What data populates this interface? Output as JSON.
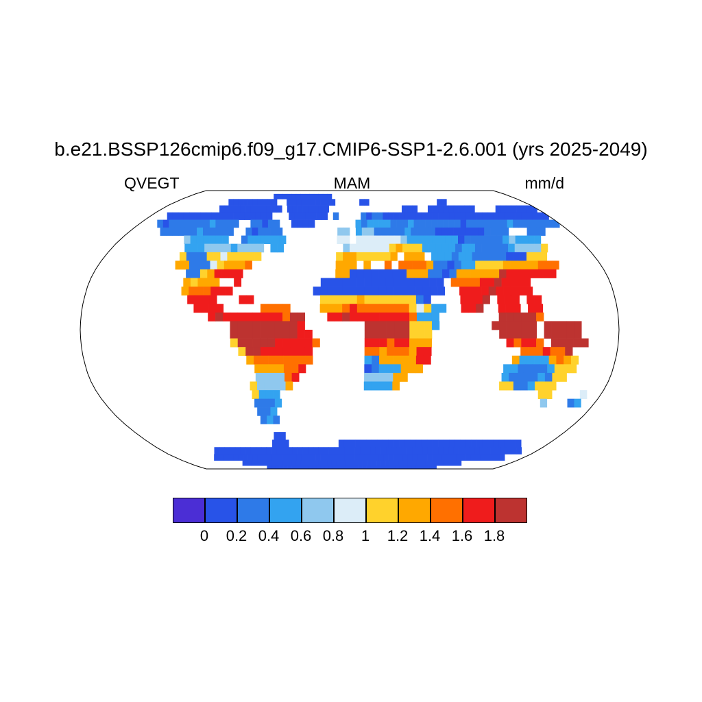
{
  "title": "b.e21.BSSP126cmip6.f09_g17.CMIP6-SSP1-2.6.001 (yrs 2025-2049)",
  "header": {
    "variable": "QVEGT",
    "season": "MAM",
    "units": "mm/d"
  },
  "colorbar": {
    "tick_labels": [
      "0",
      "0.2",
      "0.4",
      "0.6",
      "0.8",
      "1",
      "1.2",
      "1.4",
      "1.6",
      "1.8"
    ],
    "colors": [
      "#4b2ed5",
      "#2853e8",
      "#2e7ae8",
      "#33a3f0",
      "#8fc8ee",
      "#dcedf8",
      "#ffd22c",
      "#ffa800",
      "#ff7000",
      "#ef1c1c",
      "#bd3330"
    ]
  },
  "chart_data": {
    "type": "heatmap",
    "title": "b.e21.BSSP126cmip6.f09_g17.CMIP6-SSP1-2.6.001 (yrs 2025-2049)",
    "variable": "QVEGT",
    "season": "MAM",
    "units": "mm/d",
    "projection": "robinson",
    "legend_position": "bottom",
    "levels": [
      0,
      0.2,
      0.4,
      0.6,
      0.8,
      1,
      1.2,
      1.4,
      1.6,
      1.8
    ],
    "palette": [
      "#4b2ed5",
      "#2853e8",
      "#2e7ae8",
      "#33a3f0",
      "#8fc8ee",
      "#dcedf8",
      "#ffd22c",
      "#ffa800",
      "#ff7000",
      "#ef1c1c",
      "#bd3330"
    ],
    "grid": {
      "cols": 72,
      "rows": 36,
      "lon_west": -180,
      "lon_east": 180,
      "lat_north": 90,
      "lat_south": -90,
      "cell_degrees": 5,
      "encoding": "each char = one 5x5 deg cell; '.' = ocean/no data; '0'-'9','A' = palette color index 0-10 (value bin of QVEGT mm/d)",
      "cells": [
        "........................................................................",
        "...................1111111111111........................................",
        "...........1111111111..1111111111.....11..............11................",
        "...........111111111111.11111111..............111..111111111....11111111",
        "...1111111111111111111...1111111.2....2222111111111111111111111111111111",
        "...22222222222222..22222..1111.......33333322222222222222222222222222222",
        ".....222222222222..222222.........44.4442222222222111111112222...222....",
        "..........3333333..3333333........55.55555553333333332222222333333......",
        "...........333444444444.33.........5555555666663333333322222244446......",
        "...........622266666666...........777666666.777.33333322222111666.......",
        "...........77222667778............777.7..7.88887222233666667777888......",
        ".............22779999.............7711111111777222277777799999999.......",
        ".............77777..9...........11111111111111111.88889999999...........",
        ".............8888999...........111111111111111111..9999999999...........",
        "..............9999...99.........666666666666622....9999.999.99..........",
        "...............9999.....8888....77788888888866633..999..999.99..........",
        ".................99999999999AA...999999999999333........AAAAA9..........",
        "....................AAAAAAAAA9........AAAAAA6663.......AAAAAA.AAAAA.....",
        "....................AAAAAAAAA99.......AAAAAA666.........AAAAA.AAAAA.....",
        "....................6AAAAA999998......999999777..........99998.AAAAA....",
        ".....................6AA9999999.......888888799............8889889......",
        "......................888888887.......337777799...........733337776.....",
        ".......................7777888........22333777...........3322222666.....",
        ".......................444488.........444477.............322222266......",
        "......................644446..........33337..............66222666.......",
        "......................6333.....................................66....6..",
        "......................2222......................................4...33..",
        "......................222...............................................",
        "......................222...............................................",
        "........................................................................",
        ".......................11...............................................",
        "......................111.........111111111111111111111111111111111.....",
        "..........11111111111111111111111111111111111111111111111111111111111...",
        "........111111111111111111111111111111111111111111111111111111111111....",
        "............1111111111111111111111111111111111111111111111111...........",
        "................11111111111111111111111111111111111111111..............."
      ]
    }
  }
}
